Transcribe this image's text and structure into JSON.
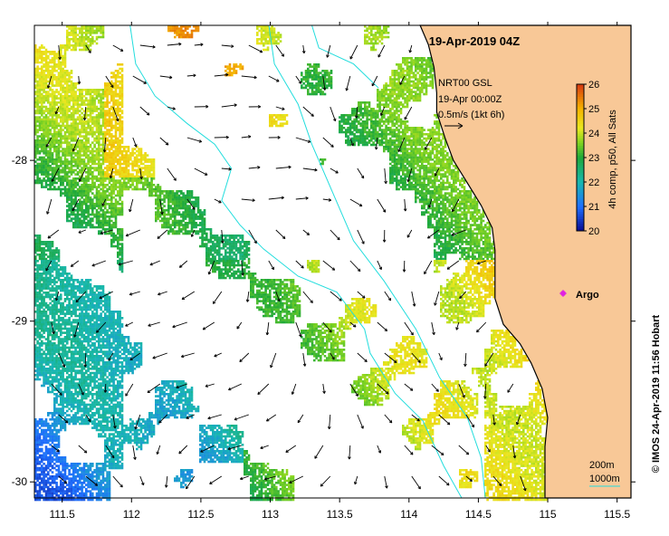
{
  "map": {
    "title": "19-Apr-2019 04Z",
    "credit": "© IMOS 24-Apr-2019 11:56 Hobart",
    "legend": {
      "product": "NRT00 GSL",
      "date": "19-Apr 00:00Z",
      "vector_scale": "0.5m/s (1kt 6h)"
    },
    "colorbar": {
      "label": "4h comp, p50, All Sats",
      "min": 20,
      "max": 26,
      "ticks": [
        "20",
        "21",
        "22",
        "23",
        "24",
        "25",
        "26"
      ]
    },
    "x_axis": {
      "range": [
        111.3,
        115.6
      ],
      "ticks": [
        {
          "value": 111.5,
          "label": "111.5"
        },
        {
          "value": 112,
          "label": "112"
        },
        {
          "value": 112.5,
          "label": "112.5"
        },
        {
          "value": 113,
          "label": "113"
        },
        {
          "value": 113.5,
          "label": "113.5"
        },
        {
          "value": 114,
          "label": "114"
        },
        {
          "value": 114.5,
          "label": "114.5"
        },
        {
          "value": 115,
          "label": "115"
        },
        {
          "value": 115.5,
          "label": "115.5"
        }
      ]
    },
    "y_axis": {
      "range": [
        -30.1,
        -27.16
      ],
      "ticks": [
        {
          "value": -28,
          "label": "-28"
        },
        {
          "value": -29,
          "label": "-29"
        },
        {
          "value": -30,
          "label": "-30"
        }
      ]
    },
    "marker": {
      "label": "Argo",
      "lon": 115.1,
      "lat": -28.88,
      "color": "#e020e0"
    },
    "contours": {
      "first": "200m",
      "second": "1000m"
    },
    "colors": {
      "land": "#f8c897",
      "coast": "#000000",
      "isobath": "#22dddd",
      "arrow": "#000000"
    }
  }
}
